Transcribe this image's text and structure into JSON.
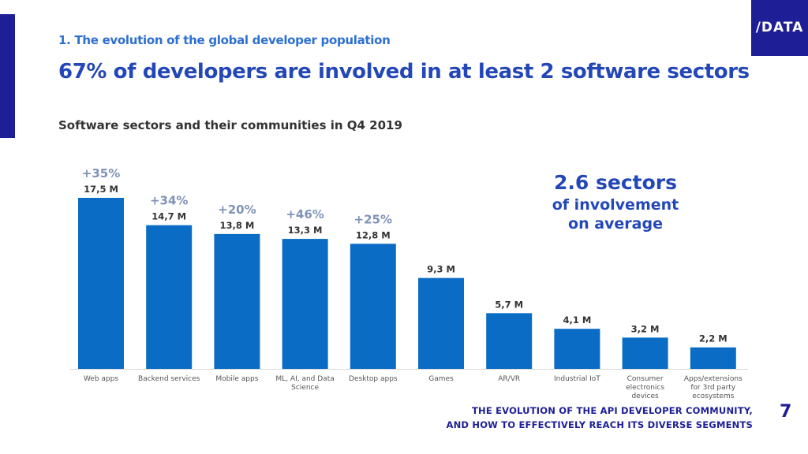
{
  "header": {
    "section_title": "1. The evolution of the global developer population",
    "main_title": "67% of developers are involved in at least 2 software sectors",
    "logo_text": "/DATA"
  },
  "callout": {
    "big": "2.6 sectors",
    "line1": "of involvement",
    "line2": "on average"
  },
  "footer": {
    "line1": "THE EVOLUTION OF THE API DEVELOPER COMMUNITY,",
    "line2": "AND HOW TO EFFECTIVELY REACH ITS DIVERSE SEGMENTS",
    "page_number": "7"
  },
  "colors": {
    "bar": "#0a6cc4",
    "growth": "#7f93b8",
    "accent": "#2347b8",
    "brand_dark": "#1e1e96"
  },
  "chart_data": {
    "type": "bar",
    "title": "Software sectors and their communities in Q4 2019",
    "xlabel": "",
    "ylabel": "",
    "ylim": [
      0,
      19
    ],
    "grid": false,
    "categories": [
      [
        "Web apps"
      ],
      [
        "Backend services"
      ],
      [
        "Mobile apps"
      ],
      [
        "ML, AI, and Data",
        "Science"
      ],
      [
        "Desktop apps"
      ],
      [
        "Games"
      ],
      [
        "AR/VR"
      ],
      [
        "Industrial IoT"
      ],
      [
        "Consumer",
        "electronics",
        "devices"
      ],
      [
        "Apps/extensions",
        "for 3rd party",
        "ecosystems"
      ]
    ],
    "values": [
      17.5,
      14.7,
      13.8,
      13.3,
      12.8,
      9.3,
      5.7,
      4.1,
      3.2,
      2.2
    ],
    "value_labels": [
      "17,5 M",
      "14,7 M",
      "13,8 M",
      "13,3 M",
      "12,8 M",
      "9,3 M",
      "5,7 M",
      "4,1 M",
      "3,2 M",
      "2,2 M"
    ],
    "growth_labels": [
      "+35%",
      "+34%",
      "+20%",
      "+46%",
      "+25%",
      "",
      "",
      "",
      "",
      ""
    ]
  }
}
